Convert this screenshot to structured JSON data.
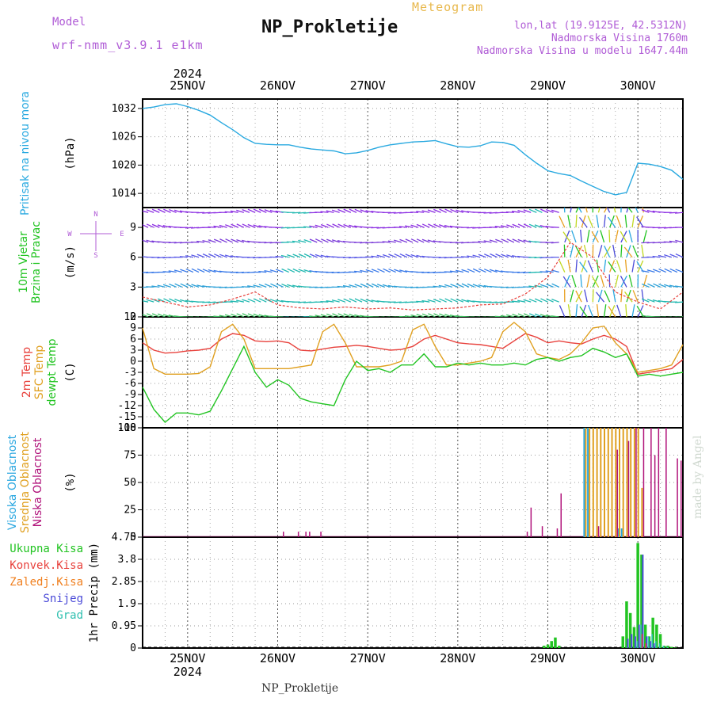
{
  "header": {
    "model_label": "Model",
    "model_name": "wrf-nmm_v3.9.1 e1km",
    "meteogram_label": "Meteogram",
    "station_title": "NP_Prokletije",
    "coords": "lon,lat (19.9125E, 42.5312N)",
    "elevation": "Nadmorska Visina 1760m",
    "model_elevation": "Nadmorska Visina u modelu 1647.44m"
  },
  "footer": {
    "station": "NP_Prokletije",
    "credit": "made by Angel"
  },
  "colors": {
    "pressure": "#29a9e0",
    "temp2m": "#e8413c",
    "sfc_temp": "#e0a020",
    "dewpoint": "#22c422",
    "cloud_high": "#2aa7e0",
    "cloud_mid": "#e0a020",
    "cloud_low": "#b0127a",
    "precip_total": "#22c422",
    "precip_conv": "#e8413c",
    "precip_frozen": "#f08020",
    "precip_snow": "#4a4ad8",
    "precip_hail": "#30c0b0"
  },
  "chart_data": [
    {
      "type": "line",
      "ylabel": "(hPa)",
      "side_labels": [
        {
          "text": "Pritisak na nivou mora",
          "color": "#29a9e0"
        }
      ],
      "ylim": [
        1011,
        1034
      ],
      "yticks": [
        "1032",
        "1026",
        "1020",
        "1014"
      ],
      "ytick_values": [
        1032,
        1026,
        1020,
        1014
      ],
      "x_dates": [
        "25NOV",
        "26NOV",
        "27NOV",
        "28NOV",
        "29NOV",
        "30NOV"
      ],
      "x_year": "2024",
      "x_start": "2024-11-24 12:00",
      "x_end": "2024-11-30 12:00",
      "grid": true,
      "series": [
        {
          "key": "pressure",
          "x_hours": [
            0,
            3,
            6,
            9,
            12,
            15,
            18,
            21,
            24,
            27,
            30,
            33,
            36,
            39,
            42,
            45,
            48,
            51,
            54,
            57,
            60,
            63,
            66,
            69,
            72,
            75,
            78,
            81,
            84,
            87,
            90,
            93,
            96,
            99,
            102,
            105,
            108,
            111,
            114,
            117,
            120,
            123,
            126,
            129,
            132,
            135,
            138,
            141,
            144
          ],
          "values": [
            1032.0,
            1032.3,
            1032.8,
            1033.0,
            1032.4,
            1031.6,
            1030.6,
            1029.0,
            1027.5,
            1025.8,
            1024.6,
            1024.4,
            1024.3,
            1024.3,
            1023.8,
            1023.4,
            1023.2,
            1023.0,
            1022.4,
            1022.6,
            1023.1,
            1023.8,
            1024.3,
            1024.6,
            1024.9,
            1025.0,
            1025.2,
            1024.5,
            1023.9,
            1023.8,
            1024.1,
            1024.9,
            1024.8,
            1024.2,
            1022.2,
            1020.4,
            1018.8,
            1018.2,
            1017.8,
            1016.6,
            1015.5,
            1014.4,
            1013.7,
            1014.2,
            1020.4,
            1020.2,
            1019.7,
            1018.9,
            1017.0
          ]
        }
      ]
    },
    {
      "type": "barbs",
      "ylabel": "(m/s)",
      "side_labels": [
        {
          "text": "10m Vjetar",
          "color": "#22c422"
        },
        {
          "text": "Brzina i Pravac",
          "color": "#22c422"
        }
      ],
      "compass": {
        "n": "N",
        "s": "S",
        "e": "E",
        "w": "W",
        "color": "#b05cd6"
      },
      "ylim": [
        0,
        11
      ],
      "yticks": [
        "9",
        "6",
        "3",
        "0"
      ],
      "ytick_values": [
        9,
        6,
        3,
        0
      ],
      "rows_y": [
        10.5,
        9,
        7.5,
        6,
        4.5,
        3,
        1.5,
        0
      ],
      "series": [
        {
          "key": "wind_speed",
          "x_hours": [
            0,
            6,
            12,
            18,
            24,
            30,
            36,
            42,
            48,
            54,
            60,
            66,
            72,
            78,
            84,
            90,
            96,
            102,
            108,
            114,
            120,
            126,
            132,
            138,
            144
          ],
          "values": [
            2.0,
            1.5,
            1.0,
            1.2,
            1.8,
            2.5,
            1.2,
            0.9,
            0.8,
            1.0,
            0.8,
            0.9,
            0.7,
            0.8,
            0.9,
            1.2,
            1.3,
            2.3,
            4.0,
            7.5,
            6.0,
            2.5,
            1.5,
            0.8,
            2.5
          ]
        }
      ]
    },
    {
      "type": "line",
      "ylabel": "(C)",
      "side_labels": [
        {
          "text": "2m Temp",
          "color": "#e8413c"
        },
        {
          "text": "SFC Temp",
          "color": "#e0a020"
        },
        {
          "text": "dewpt Temp",
          "color": "#22c422"
        }
      ],
      "ylim": [
        -18,
        12
      ],
      "yticks": [
        "12",
        "9",
        "6",
        "3",
        "0",
        "-3",
        "-6",
        "-9",
        "-12",
        "-15",
        "-18"
      ],
      "ytick_values": [
        12,
        9,
        6,
        3,
        0,
        -3,
        -6,
        -9,
        -12,
        -15,
        -18
      ],
      "series": [
        {
          "key": "temp2m",
          "x_hours": [
            0,
            3,
            6,
            9,
            12,
            15,
            18,
            21,
            24,
            27,
            30,
            33,
            36,
            39,
            42,
            45,
            48,
            51,
            54,
            57,
            60,
            63,
            66,
            69,
            72,
            75,
            78,
            81,
            84,
            87,
            90,
            93,
            96,
            99,
            102,
            105,
            108,
            111,
            114,
            117,
            120,
            123,
            126,
            129,
            132,
            135,
            138,
            141,
            144
          ],
          "values": [
            5.0,
            3.0,
            2.2,
            2.4,
            2.8,
            3.0,
            3.5,
            6.0,
            7.5,
            7.0,
            5.5,
            5.3,
            5.5,
            5.0,
            3.0,
            2.8,
            3.3,
            3.8,
            4.0,
            4.3,
            4.0,
            3.5,
            3.0,
            3.2,
            4.0,
            6.0,
            7.0,
            6.0,
            5.0,
            4.7,
            4.5,
            4.0,
            3.5,
            5.5,
            7.5,
            6.5,
            5.0,
            5.5,
            5.0,
            4.7,
            6.0,
            7.0,
            6.0,
            4.0,
            -3.5,
            -3.0,
            -2.5,
            -2.0,
            0.5
          ]
        },
        {
          "key": "sfc_temp",
          "x_hours": [
            0,
            3,
            6,
            9,
            12,
            15,
            18,
            21,
            24,
            27,
            30,
            33,
            36,
            39,
            42,
            45,
            48,
            51,
            54,
            57,
            60,
            63,
            66,
            69,
            72,
            75,
            78,
            81,
            84,
            87,
            90,
            93,
            96,
            99,
            102,
            105,
            108,
            111,
            114,
            117,
            120,
            123,
            126,
            129,
            132,
            135,
            138,
            141,
            144
          ],
          "values": [
            9.0,
            -2.0,
            -3.5,
            -3.5,
            -3.5,
            -3.3,
            -1.5,
            8.0,
            10.0,
            6.0,
            -2.0,
            -2.0,
            -2.0,
            -2.0,
            -1.5,
            -1.0,
            8.0,
            10.0,
            5.0,
            -1.5,
            -1.5,
            -1.5,
            -1.0,
            0.0,
            8.5,
            10.0,
            4.0,
            -1.0,
            -1.0,
            -0.5,
            0.0,
            1.0,
            8.0,
            10.5,
            8.0,
            2.0,
            1.0,
            0.5,
            2.0,
            5.0,
            9.0,
            9.5,
            5.0,
            2.0,
            -3.0,
            -2.5,
            -2.0,
            -1.0,
            4.5
          ]
        },
        {
          "key": "dewpoint",
          "x_hours": [
            0,
            3,
            6,
            9,
            12,
            15,
            18,
            21,
            24,
            27,
            30,
            33,
            36,
            39,
            42,
            45,
            48,
            51,
            54,
            57,
            60,
            63,
            66,
            69,
            72,
            75,
            78,
            81,
            84,
            87,
            90,
            93,
            96,
            99,
            102,
            105,
            108,
            111,
            114,
            117,
            120,
            123,
            126,
            129,
            132,
            135,
            138,
            141,
            144
          ],
          "values": [
            -7.0,
            -13.0,
            -16.5,
            -14.0,
            -14.0,
            -14.5,
            -13.5,
            -8.0,
            -2.0,
            4.0,
            -3.0,
            -7.0,
            -5.0,
            -6.5,
            -10.0,
            -11.0,
            -11.5,
            -12.0,
            -5.0,
            0.0,
            -2.5,
            -2.0,
            -3.0,
            -1.0,
            -1.0,
            2.0,
            -1.5,
            -1.5,
            -0.5,
            -1.0,
            -0.5,
            -1.0,
            -1.0,
            -0.5,
            -1.0,
            0.5,
            1.0,
            0.0,
            1.0,
            1.5,
            3.5,
            2.5,
            1.0,
            2.0,
            -4.0,
            -3.5,
            -4.0,
            -3.5,
            -3.0
          ]
        }
      ]
    },
    {
      "type": "bar",
      "ylabel": "(%)",
      "side_labels": [
        {
          "text": "Visoka Oblacnost",
          "color": "#2aa7e0"
        },
        {
          "text": "Srednja Oblacnost",
          "color": "#e0a020"
        },
        {
          "text": "Niska Oblacnost",
          "color": "#b0127a"
        }
      ],
      "ylim": [
        0,
        100
      ],
      "yticks": [
        "100",
        "75",
        "50",
        "25",
        "0"
      ],
      "ytick_values": [
        100,
        75,
        50,
        25,
        0
      ],
      "series": [
        {
          "key": "cloud_low",
          "x_hours": [
            37,
            41,
            43,
            44,
            47,
            102,
            103,
            106,
            110,
            111,
            121,
            126,
            129,
            131,
            133,
            135,
            136,
            137,
            139,
            142,
            143
          ],
          "values": [
            5,
            5,
            5,
            5,
            5,
            5,
            27,
            10,
            8,
            40,
            10,
            80,
            88,
            100,
            100,
            100,
            75,
            100,
            100,
            72,
            70
          ]
        },
        {
          "key": "cloud_mid",
          "x_hours": [
            118,
            119,
            120,
            121,
            122,
            123,
            124,
            125,
            126,
            127,
            128,
            129,
            130,
            131,
            132,
            133
          ],
          "values": [
            100,
            100,
            100,
            100,
            100,
            100,
            100,
            100,
            100,
            100,
            100,
            100,
            100,
            100,
            100,
            45
          ]
        },
        {
          "key": "cloud_high",
          "x_hours": [
            118,
            119,
            127,
            128
          ],
          "values": [
            100,
            100,
            8,
            8
          ]
        }
      ]
    },
    {
      "type": "bar",
      "ylabel": "1hr Precip (mm)",
      "side_labels": [
        {
          "text": "Ukupna Kisa",
          "color": "#22c422"
        },
        {
          "text": "Konvek.Kisa",
          "color": "#e8413c"
        },
        {
          "text": "Zaledj.Kisa",
          "color": "#f08020"
        },
        {
          "text": "Snijeg",
          "color": "#4a4ad8"
        },
        {
          "text": "Grad",
          "color": "#30c0b0"
        }
      ],
      "ylim": [
        0,
        4.75
      ],
      "yticks": [
        "4.75",
        "3.8",
        "2.85",
        "1.9",
        "0.95",
        "0"
      ],
      "ytick_values": [
        4.75,
        3.8,
        2.85,
        1.9,
        0.95,
        0
      ],
      "series": [
        {
          "key": "precip_total",
          "x_hours": [
            107,
            108,
            109,
            110,
            111,
            128,
            129,
            130,
            131,
            132,
            133,
            134,
            135,
            136,
            137,
            138,
            139,
            140,
            141,
            142
          ],
          "values": [
            0.1,
            0.15,
            0.3,
            0.45,
            0.1,
            0.5,
            2.0,
            1.5,
            0.9,
            4.5,
            4.0,
            1.0,
            0.5,
            1.3,
            1.0,
            0.6,
            0.1,
            0.1,
            0.05,
            0.02
          ]
        },
        {
          "key": "precip_snow",
          "x_hours": [
            129,
            130,
            131,
            132,
            133,
            134,
            135,
            136
          ],
          "values": [
            0.4,
            0.6,
            0.5,
            1.0,
            4.0,
            0.5,
            0.3,
            0.2
          ]
        },
        {
          "key": "precip_hail",
          "x_hours": [
            132,
            133,
            135,
            136,
            137,
            138,
            139,
            140
          ],
          "values": [
            0.3,
            1.0,
            0.5,
            0.6,
            0.3,
            0.2,
            0.1,
            0.05
          ]
        },
        {
          "key": "precip_conv",
          "x_hours": [
            133,
            134
          ],
          "values": [
            0.6,
            0.2
          ]
        }
      ]
    }
  ]
}
